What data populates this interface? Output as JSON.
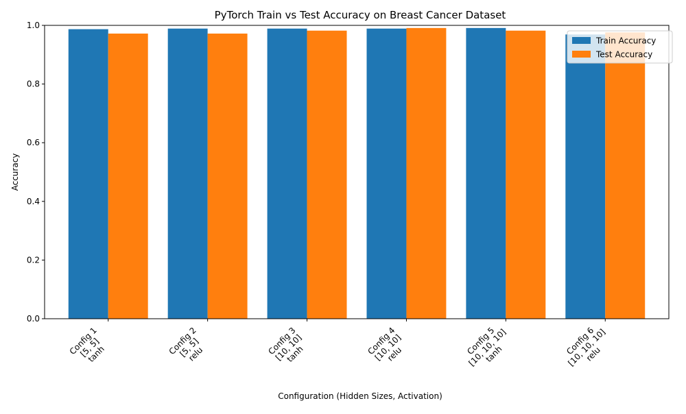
{
  "chart_data": {
    "type": "bar",
    "title": "PyTorch Train vs Test Accuracy on Breast Cancer Dataset",
    "xlabel": "Configuration (Hidden Sizes, Activation)",
    "ylabel": "Accuracy",
    "ylim": [
      0,
      1.0
    ],
    "yticks": [
      "0.0",
      "0.2",
      "0.4",
      "0.6",
      "0.8",
      "1.0"
    ],
    "grid": false,
    "legend_position": "top-right",
    "categories": [
      [
        "Config 1",
        "[5, 5]",
        "tanh"
      ],
      [
        "Config 2",
        "[5, 5]",
        "relu"
      ],
      [
        "Config 3",
        "[10, 10]",
        "tanh"
      ],
      [
        "Config 4",
        "[10, 10]",
        "relu"
      ],
      [
        "Config 5",
        "[10, 10, 10]",
        "tanh"
      ],
      [
        "Config 6",
        "[10, 10, 10]",
        "relu"
      ]
    ],
    "series": [
      {
        "name": "Train Accuracy",
        "color": "#1f77b4",
        "values": [
          0.987,
          0.989,
          0.989,
          0.989,
          0.991,
          0.969
        ]
      },
      {
        "name": "Test Accuracy",
        "color": "#ff7f0e",
        "values": [
          0.972,
          0.972,
          0.982,
          0.991,
          0.982,
          0.976
        ]
      }
    ]
  }
}
